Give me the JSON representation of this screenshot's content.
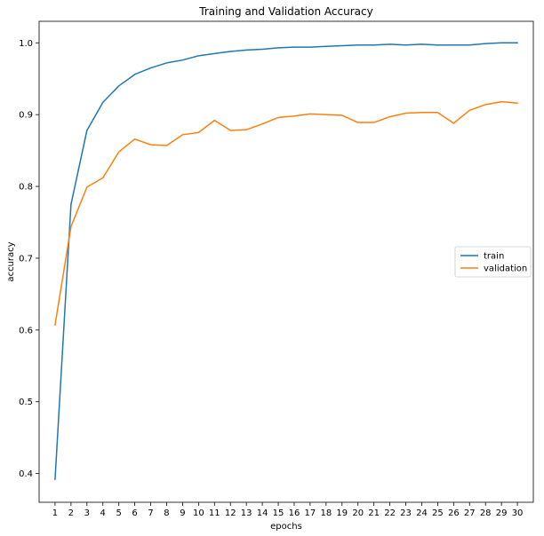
{
  "chart_data": {
    "type": "line",
    "title": "Training and Validation Accuracy",
    "xlabel": "epochs",
    "ylabel": "accuracy",
    "x": [
      1,
      2,
      3,
      4,
      5,
      6,
      7,
      8,
      9,
      10,
      11,
      12,
      13,
      14,
      15,
      16,
      17,
      18,
      19,
      20,
      21,
      22,
      23,
      24,
      25,
      26,
      27,
      28,
      29,
      30
    ],
    "xlim": [
      0,
      31
    ],
    "ylim": [
      0.36,
      1.03
    ],
    "yticks": [
      0.4,
      0.5,
      0.6,
      0.7,
      0.8,
      0.9,
      1.0
    ],
    "ytick_labels": [
      "0.4",
      "0.5",
      "0.6",
      "0.7",
      "0.8",
      "0.9",
      "1.0"
    ],
    "grid": false,
    "legend_position": "center-right",
    "series": [
      {
        "name": "train",
        "color": "#1f77b4",
        "values": [
          0.392,
          0.775,
          0.878,
          0.917,
          0.94,
          0.956,
          0.965,
          0.972,
          0.976,
          0.982,
          0.985,
          0.988,
          0.99,
          0.991,
          0.993,
          0.994,
          0.994,
          0.995,
          0.996,
          0.997,
          0.997,
          0.998,
          0.997,
          0.998,
          0.997,
          0.997,
          0.997,
          0.999,
          1.0,
          1.0
        ]
      },
      {
        "name": "validation",
        "color": "#ff7f0e",
        "values": [
          0.607,
          0.744,
          0.799,
          0.812,
          0.848,
          0.866,
          0.858,
          0.857,
          0.872,
          0.875,
          0.892,
          0.878,
          0.879,
          0.887,
          0.896,
          0.898,
          0.901,
          0.9,
          0.899,
          0.889,
          0.889,
          0.897,
          0.902,
          0.903,
          0.903,
          0.888,
          0.906,
          0.914,
          0.918,
          0.916
        ]
      }
    ]
  }
}
